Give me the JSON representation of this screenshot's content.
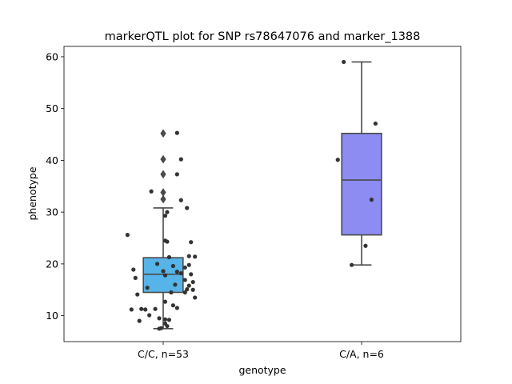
{
  "chart_data": {
    "type": "box",
    "title": "markerQTL plot for SNP rs78647076 and marker_1388",
    "xlabel": "genotype",
    "ylabel": "phenotype",
    "ylim": [
      5,
      62
    ],
    "yticks": [
      10,
      20,
      30,
      40,
      50,
      60
    ],
    "categories": [
      "C/C, n=53",
      "C/A, n=6"
    ],
    "colors": [
      "#56b4e9",
      "#8c8cf2"
    ],
    "boxes": [
      {
        "q1": 14.5,
        "median": 18.0,
        "q3": 21.2,
        "whisker_low": 7.5,
        "whisker_high": 30.8,
        "outliers": [
          32.5,
          33.8,
          37.3,
          40.2,
          45.2
        ]
      },
      {
        "q1": 25.6,
        "median": 36.2,
        "q3": 45.2,
        "whisker_low": 19.8,
        "whisker_high": 59.0,
        "outliers": []
      }
    ],
    "points": [
      [
        {
          "x": -0.18,
          "y": 25.6
        },
        {
          "x": -0.06,
          "y": 34.0
        },
        {
          "x": 0.07,
          "y": 45.3
        },
        {
          "x": 0.09,
          "y": 40.2
        },
        {
          "x": 0.07,
          "y": 37.3
        },
        {
          "x": 0.09,
          "y": 32.3
        },
        {
          "x": 0.12,
          "y": 30.8
        },
        {
          "x": 0.01,
          "y": 29.3
        },
        {
          "x": 0.02,
          "y": 30.0
        },
        {
          "x": 0.01,
          "y": 24.5
        },
        {
          "x": 0.02,
          "y": 24.3
        },
        {
          "x": 0.14,
          "y": 24.2
        },
        {
          "x": 0.03,
          "y": 21.3
        },
        {
          "x": 0.13,
          "y": 21.5
        },
        {
          "x": 0.16,
          "y": 21.4
        },
        {
          "x": -0.15,
          "y": 18.9
        },
        {
          "x": -0.03,
          "y": 20.0
        },
        {
          "x": 0.05,
          "y": 19.6
        },
        {
          "x": 0.07,
          "y": 18.5
        },
        {
          "x": 0.09,
          "y": 18.2
        },
        {
          "x": 0.11,
          "y": 19.3
        },
        {
          "x": 0.13,
          "y": 19.8
        },
        {
          "x": 0.14,
          "y": 18.0
        },
        {
          "x": -0.14,
          "y": 17.3
        },
        {
          "x": 0.01,
          "y": 17.8
        },
        {
          "x": 0.11,
          "y": 16.9
        },
        {
          "x": 0.15,
          "y": 16.5
        },
        {
          "x": 0.06,
          "y": 16.0
        },
        {
          "x": 0.13,
          "y": 15.8
        },
        {
          "x": -0.08,
          "y": 15.4
        },
        {
          "x": 0.12,
          "y": 15.1
        },
        {
          "x": 0.15,
          "y": 15.0
        },
        {
          "x": -0.13,
          "y": 14.1
        },
        {
          "x": 0.04,
          "y": 14.5
        },
        {
          "x": 0.11,
          "y": 14.5
        },
        {
          "x": 0.16,
          "y": 13.5
        },
        {
          "x": 0.01,
          "y": 12.7
        },
        {
          "x": -0.16,
          "y": 11.2
        },
        {
          "x": -0.11,
          "y": 11.3
        },
        {
          "x": -0.09,
          "y": 11.2
        },
        {
          "x": -0.04,
          "y": 11.3
        },
        {
          "x": 0.05,
          "y": 12.0
        },
        {
          "x": 0.07,
          "y": 11.5
        },
        {
          "x": -0.07,
          "y": 10.1
        },
        {
          "x": -0.02,
          "y": 9.5
        },
        {
          "x": 0.01,
          "y": 9.3
        },
        {
          "x": -0.12,
          "y": 9.0
        },
        {
          "x": 0.03,
          "y": 9.2
        },
        {
          "x": 0.01,
          "y": 8.5
        },
        {
          "x": 0.02,
          "y": 8.0
        },
        {
          "x": -0.02,
          "y": 7.5
        },
        {
          "x": -0.01,
          "y": 7.6
        },
        {
          "x": 0.0,
          "y": 18.6
        }
      ],
      [
        {
          "x": -0.09,
          "y": 59.0
        },
        {
          "x": 0.07,
          "y": 47.1
        },
        {
          "x": -0.12,
          "y": 40.1
        },
        {
          "x": 0.05,
          "y": 32.4
        },
        {
          "x": 0.02,
          "y": 23.5
        },
        {
          "x": -0.05,
          "y": 19.8
        }
      ]
    ]
  }
}
